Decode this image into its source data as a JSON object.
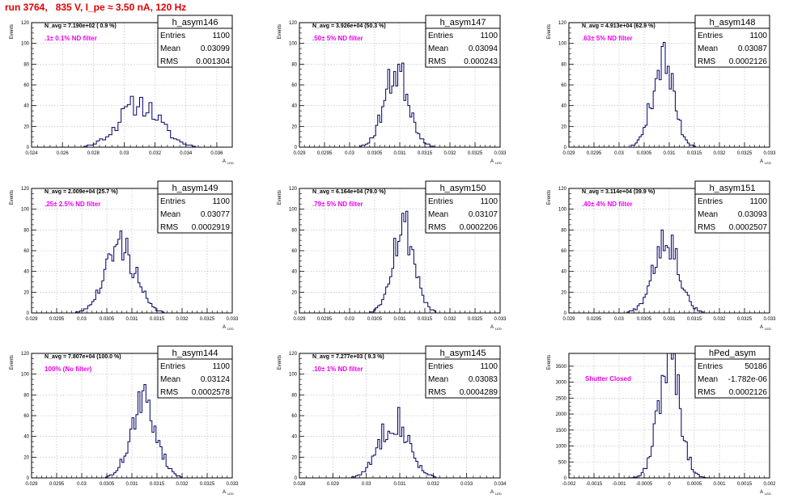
{
  "run_title": "run 3764,   835 V, I_pe ≈ 3.50 nA, 120 Hz",
  "stat_labels": {
    "entries": "Entries",
    "mean": "Mean",
    "rms": "RMS"
  },
  "y_title": "Events",
  "x_title": "A",
  "x_title_sub": "LED",
  "colors": {
    "histogram": "#00006e",
    "filter_label": "#ee00ee",
    "run_title": "#e00000",
    "grid": "#b5b5b5",
    "axis": "#000000"
  },
  "chart_data": [
    {
      "type": "histogram",
      "name": "h_asym146",
      "navg": "N_avg = 7.190e+02 ( 0.9 %)",
      "filter": ".1± 0.1% ND filter",
      "stats": {
        "entries": "1100",
        "mean": "0.03099",
        "rms": "0.001304"
      },
      "xlim": [
        0.024,
        0.037
      ],
      "ylim": [
        0,
        120
      ],
      "xticks": [
        0.024,
        0.026,
        0.028,
        0.03,
        0.032,
        0.034,
        0.036
      ],
      "xtick_labels": [
        "0.024",
        "0.026",
        "0.028",
        "0.03",
        "0.032",
        "0.034",
        "0.036"
      ],
      "yticks": [
        0,
        20,
        40,
        60,
        80,
        100,
        120
      ],
      "ytick_labels": [
        "0",
        "20",
        "40",
        "60",
        "80",
        "100",
        "120"
      ],
      "x_minor": 5,
      "hist": {
        "mean": 0.03099,
        "sigma": 0.0013,
        "peak": 42,
        "bins": 65,
        "seed": 11
      }
    },
    {
      "type": "histogram",
      "name": "h_asym147",
      "navg": "N_avg = 3.926e+04 (50.3 %)",
      "filter": ".50± 5% ND filter",
      "stats": {
        "entries": "1100",
        "mean": "0.03094",
        "rms": "0.000243"
      },
      "xlim": [
        0.029,
        0.033
      ],
      "ylim": [
        0,
        120
      ],
      "xticks": [
        0.029,
        0.0295,
        0.03,
        0.0305,
        0.031,
        0.0315,
        0.032,
        0.0325,
        0.033
      ],
      "xtick_labels": [
        "0.029",
        "0.0295",
        "0.03",
        "0.0305",
        "0.031",
        "0.0315",
        "0.032",
        "0.0325",
        "0.033"
      ],
      "yticks": [
        0,
        20,
        40,
        60,
        80,
        100,
        120
      ],
      "ytick_labels": [
        "0",
        "20",
        "40",
        "60",
        "80",
        "100",
        "120"
      ],
      "x_minor": 5,
      "hist": {
        "mean": 0.03094,
        "sigma": 0.000243,
        "peak": 74,
        "bins": 100,
        "seed": 23
      }
    },
    {
      "type": "histogram",
      "name": "h_asym148",
      "navg": "N_avg = 4.913e+04 (62.9 %)",
      "filter": ".63± 5% ND filter",
      "stats": {
        "entries": "1100",
        "mean": "0.03087",
        "rms": "0.0002126"
      },
      "xlim": [
        0.029,
        0.033
      ],
      "ylim": [
        0,
        120
      ],
      "xticks": [
        0.029,
        0.0295,
        0.03,
        0.0305,
        0.031,
        0.0315,
        0.032,
        0.0325,
        0.033
      ],
      "xtick_labels": [
        "0.029",
        "0.0295",
        "0.03",
        "0.0305",
        "0.031",
        "0.0315",
        "0.032",
        "0.0325",
        "0.033"
      ],
      "yticks": [
        0,
        20,
        40,
        60,
        80,
        100,
        120
      ],
      "ytick_labels": [
        "0",
        "20",
        "40",
        "60",
        "80",
        "100",
        "120"
      ],
      "x_minor": 5,
      "hist": {
        "mean": 0.03087,
        "sigma": 0.0002126,
        "peak": 84,
        "bins": 100,
        "seed": 37
      }
    },
    {
      "type": "histogram",
      "name": "h_asym149",
      "navg": "N_avg = 2.009e+04 (25.7 %)",
      "filter": ".25± 2.5% ND filter",
      "stats": {
        "entries": "1100",
        "mean": "0.03077",
        "rms": "0.0002919"
      },
      "xlim": [
        0.029,
        0.033
      ],
      "ylim": [
        0,
        120
      ],
      "xticks": [
        0.029,
        0.0295,
        0.03,
        0.0305,
        0.031,
        0.0315,
        0.032,
        0.0325,
        0.033
      ],
      "xtick_labels": [
        "0.029",
        "0.0295",
        "0.03",
        "0.0305",
        "0.031",
        "0.0315",
        "0.032",
        "0.0325",
        "0.033"
      ],
      "yticks": [
        0,
        20,
        40,
        60,
        80,
        100,
        120
      ],
      "ytick_labels": [
        "0",
        "20",
        "40",
        "60",
        "80",
        "100",
        "120"
      ],
      "x_minor": 5,
      "hist": {
        "mean": 0.03077,
        "sigma": 0.0002919,
        "peak": 66,
        "bins": 100,
        "seed": 41
      }
    },
    {
      "type": "histogram",
      "name": "h_asym150",
      "navg": "N_avg = 6.164e+04 (79.0 %)",
      "filter": ".79± 5% ND filter",
      "stats": {
        "entries": "1100",
        "mean": "0.03107",
        "rms": "0.0002206"
      },
      "xlim": [
        0.029,
        0.033
      ],
      "ylim": [
        0,
        120
      ],
      "xticks": [
        0.029,
        0.0295,
        0.03,
        0.0305,
        0.031,
        0.0315,
        0.032,
        0.0325,
        0.033
      ],
      "xtick_labels": [
        "0.029",
        "0.0295",
        "0.03",
        "0.0305",
        "0.031",
        "0.0315",
        "0.032",
        "0.0325",
        "0.033"
      ],
      "yticks": [
        0,
        20,
        40,
        60,
        80,
        100,
        120
      ],
      "ytick_labels": [
        "0",
        "20",
        "40",
        "60",
        "80",
        "100",
        "120"
      ],
      "x_minor": 5,
      "hist": {
        "mean": 0.03107,
        "sigma": 0.0002206,
        "peak": 85,
        "bins": 100,
        "seed": 53
      }
    },
    {
      "type": "histogram",
      "name": "h_asym151",
      "navg": "N_avg = 3.114e+04 (39.9 %)",
      "filter": ".40± 4% ND filter",
      "stats": {
        "entries": "1100",
        "mean": "0.03093",
        "rms": "0.0002507"
      },
      "xlim": [
        0.029,
        0.033
      ],
      "ylim": [
        0,
        120
      ],
      "xticks": [
        0.029,
        0.0295,
        0.03,
        0.0305,
        0.031,
        0.0315,
        0.032,
        0.0325,
        0.033
      ],
      "xtick_labels": [
        "0.029",
        "0.0295",
        "0.03",
        "0.0305",
        "0.031",
        "0.0315",
        "0.032",
        "0.0325",
        "0.033"
      ],
      "yticks": [
        0,
        20,
        40,
        60,
        80,
        100,
        120
      ],
      "ytick_labels": [
        "0",
        "20",
        "40",
        "60",
        "80",
        "100",
        "120"
      ],
      "x_minor": 5,
      "hist": {
        "mean": 0.03093,
        "sigma": 0.0002507,
        "peak": 75,
        "bins": 100,
        "seed": 67
      }
    },
    {
      "type": "histogram",
      "name": "h_asym144",
      "navg": "N_avg = 7.807e+04 (100.0 %)",
      "filter": "100% (No filter)",
      "stats": {
        "entries": "1100",
        "mean": "0.03124",
        "rms": "0.0002578"
      },
      "xlim": [
        0.029,
        0.033
      ],
      "ylim": [
        0,
        120
      ],
      "xticks": [
        0.029,
        0.0295,
        0.03,
        0.0305,
        0.031,
        0.0315,
        0.032,
        0.0325,
        0.033
      ],
      "xtick_labels": [
        "0.029",
        "0.0295",
        "0.03",
        "0.0305",
        "0.031",
        "0.0315",
        "0.032",
        "0.0325",
        "0.033"
      ],
      "yticks": [
        0,
        20,
        40,
        60,
        80,
        100,
        120
      ],
      "ytick_labels": [
        "0",
        "20",
        "40",
        "60",
        "80",
        "100",
        "120"
      ],
      "x_minor": 5,
      "hist": {
        "mean": 0.03124,
        "sigma": 0.0002578,
        "peak": 72,
        "bins": 100,
        "seed": 71
      }
    },
    {
      "type": "histogram",
      "name": "h_asym145",
      "navg": "N_avg = 7.277e+03 ( 9.3 %)",
      "filter": ".10± 1% ND filter",
      "stats": {
        "entries": "1100",
        "mean": "0.03083",
        "rms": "0.0004289"
      },
      "xlim": [
        0.028,
        0.034
      ],
      "ylim": [
        0,
        120
      ],
      "xticks": [
        0.028,
        0.029,
        0.03,
        0.031,
        0.032,
        0.033,
        0.034
      ],
      "xtick_labels": [
        "0.028",
        "0.029",
        "0.03",
        "0.031",
        "0.032",
        "0.033",
        "0.034"
      ],
      "yticks": [
        0,
        20,
        40,
        60,
        80,
        100,
        120
      ],
      "ytick_labels": [
        "0",
        "20",
        "40",
        "60",
        "80",
        "100",
        "120"
      ],
      "x_minor": 5,
      "hist": {
        "mean": 0.03083,
        "sigma": 0.0004289,
        "peak": 58,
        "bins": 100,
        "seed": 83
      }
    },
    {
      "type": "histogram",
      "name": "hPed_asym",
      "navg": "",
      "filter": "Shutter Closed",
      "stats": {
        "entries": "50186",
        "mean": "-1.782e-06",
        "rms": "0.0002126"
      },
      "xlim": [
        -0.002,
        0.002
      ],
      "ylim": [
        0,
        3900
      ],
      "xticks": [
        -0.002,
        -0.0015,
        -0.001,
        -0.0005,
        0,
        0.0005,
        0.001,
        0.0015,
        0.002
      ],
      "xtick_labels": [
        "-0.002",
        "-0.0015",
        "-0.001",
        "-0.0005",
        "0",
        "0.0005",
        "0.001",
        "0.0015",
        "0.002"
      ],
      "yticks": [
        0,
        500,
        1000,
        1500,
        2000,
        2500,
        3000,
        3500
      ],
      "ytick_labels": [
        "0",
        "500",
        "1000",
        "1500",
        "2000",
        "2500",
        "3000",
        "3500"
      ],
      "x_minor": 5,
      "hist": {
        "mean": -1.8e-06,
        "sigma": 0.0002126,
        "peak": 3750,
        "bins": 100,
        "seed": 97
      }
    }
  ]
}
